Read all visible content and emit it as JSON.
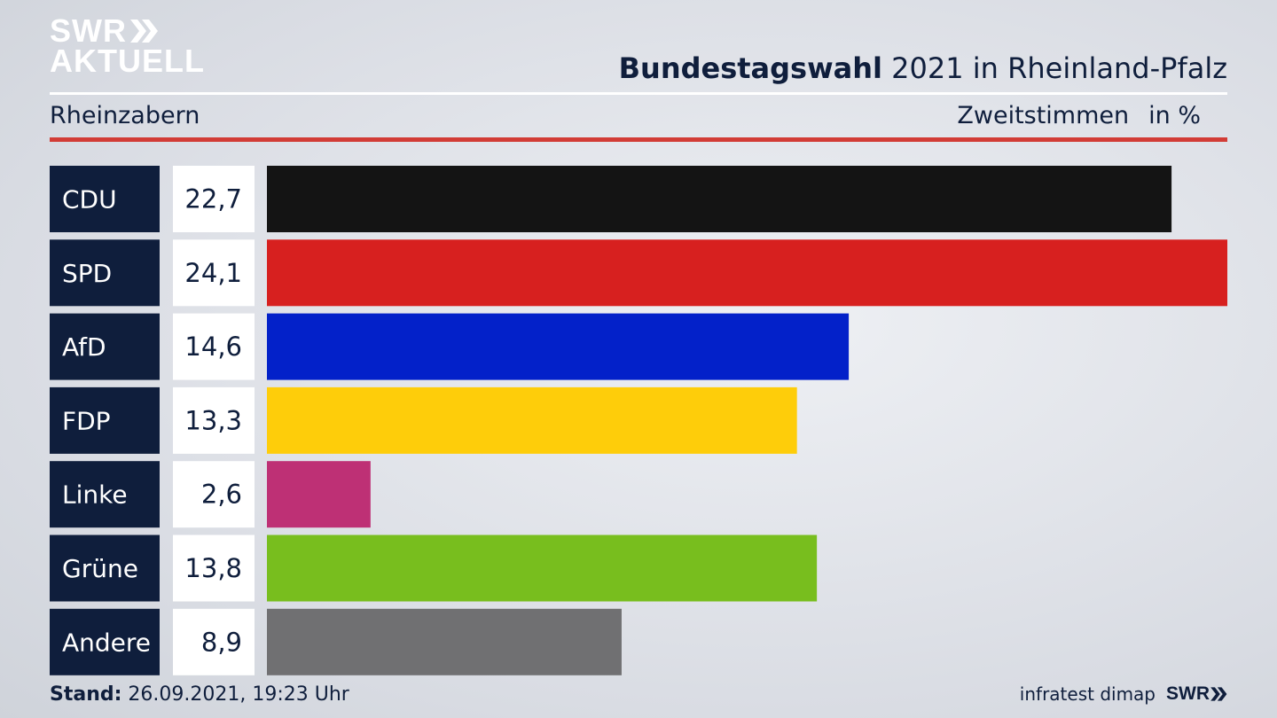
{
  "brand": {
    "line1": "SWR",
    "line2": "AKTUELL"
  },
  "header": {
    "title_bold": "Bundestagswahl",
    "title_rest": " 2021 in Rheinland-Pfalz",
    "subtitle": "Rheinzabern",
    "measure": "Zweitstimmen",
    "unit": "in %"
  },
  "colors": {
    "accent_rule": "#d23c36",
    "label_box": "#0f1e3c",
    "value_box": "#ffffff"
  },
  "chart_data": {
    "type": "bar",
    "orientation": "horizontal",
    "categories": [
      "CDU",
      "SPD",
      "AfD",
      "FDP",
      "Linke",
      "Grüne",
      "Andere"
    ],
    "values": [
      22.7,
      24.1,
      14.6,
      13.3,
      2.6,
      13.8,
      8.9
    ],
    "value_labels": [
      "22,7",
      "24,1",
      "14,6",
      "13,3",
      "2,6",
      "13,8",
      "8,9"
    ],
    "colors": [
      "#141414",
      "#d7201f",
      "#0321c9",
      "#fecd0a",
      "#be3075",
      "#78be1e",
      "#707072"
    ],
    "xlim": [
      0,
      24.1
    ]
  },
  "footer": {
    "stand_label": "Stand:",
    "stand_value": " 26.09.2021, 19:23 Uhr",
    "source": "infratest dimap",
    "brand": "SWR"
  }
}
